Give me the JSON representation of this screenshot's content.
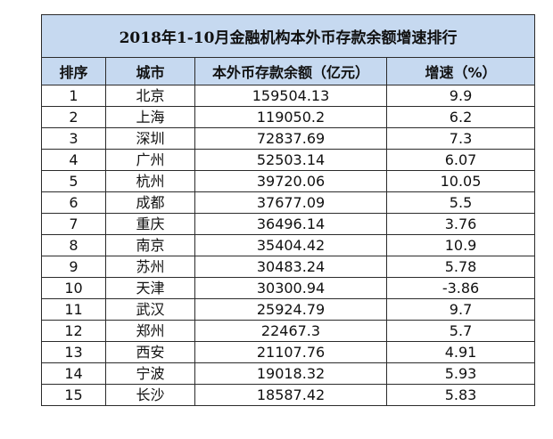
{
  "title": "2018年1-10月金融机构本外币存款余额增速排行",
  "headers": [
    "排序",
    "城市",
    "本外币存款余额（亿元）",
    "增速（%）"
  ],
  "rows": [
    [
      "1",
      "北京",
      "159504.13",
      "9.9"
    ],
    [
      "2",
      "上海",
      "119050.2",
      "6.2"
    ],
    [
      "3",
      "深圳",
      "72837.69",
      "7.3"
    ],
    [
      "4",
      "广州",
      "52503.14",
      "6.07"
    ],
    [
      "5",
      "杭州",
      "39720.06",
      "10.05"
    ],
    [
      "6",
      "成都",
      "37677.09",
      "5.5"
    ],
    [
      "7",
      "重庆",
      "36496.14",
      "3.76"
    ],
    [
      "8",
      "南京",
      "35404.42",
      "10.9"
    ],
    [
      "9",
      "苏州",
      "30483.24",
      "5.78"
    ],
    [
      "10",
      "天津",
      "30300.94",
      "-3.86"
    ],
    [
      "11",
      "武汉",
      "25924.79",
      "9.7"
    ],
    [
      "12",
      "郑州",
      "22467.3",
      "5.7"
    ],
    [
      "13",
      "西安",
      "21107.76",
      "4.91"
    ],
    [
      "14",
      "宁波",
      "19018.32",
      "5.93"
    ],
    [
      "15",
      "长沙",
      "18587.42",
      "5.83"
    ]
  ],
  "colors": {
    "header_bg": "#c6d9f0",
    "border": "#2b2b2b"
  }
}
